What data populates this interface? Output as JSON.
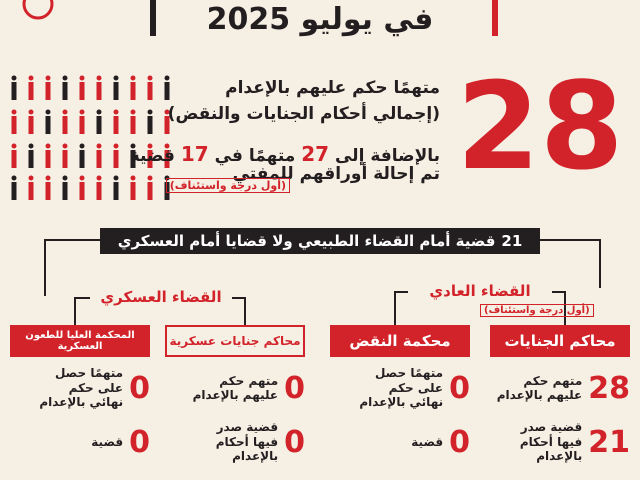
{
  "header": {
    "title": "في يوليو 2025"
  },
  "summary": {
    "big_number": 28,
    "line1": "متهمًا حكم عليهم بالإعدام",
    "line2": "(إجمالي أحكام الجنايات والنقض)",
    "line3": [
      "بالإضافة إلى",
      27,
      "متهمًا في",
      17,
      "قضية"
    ],
    "line4": "تم إحالة أوراقهم للمفتي",
    "note": "(أول درجة واستئناف)"
  },
  "banner": {
    "number": 21,
    "text": "قضية أمام القضاء الطبيعي ولا قضايا أمام العسكري"
  },
  "branches": {
    "military": "القضاء العسكري",
    "civil": "القضاء العادي",
    "civil_note": "(أول درجة واستئناف)"
  },
  "columns": [
    {
      "title": "محاكم الجنايات",
      "stats": [
        {
          "number": 28,
          "label": "متهم حكم عليهم بالإعدام"
        },
        {
          "number": 21,
          "label": "قضية صدر فيها أحكام بالإعدام"
        }
      ]
    },
    {
      "title": "محكمة النقض",
      "stats": [
        {
          "number": 0,
          "label": "متهمًا حصل على حكم نهائي بالإعدام"
        },
        {
          "number": 0,
          "label": "قضية"
        }
      ]
    },
    {
      "title": "محاكم جنايات عسكرية",
      "stats": [
        {
          "number": 0,
          "label": "متهم حكم عليهم بالإعدام"
        },
        {
          "number": 0,
          "label": "قضية صدر فيها أحكام بالإعدام"
        }
      ]
    },
    {
      "title": "المحكمة العليا للطعون العسكرية",
      "stats": [
        {
          "number": 0,
          "label": "متهمًا حصل على حكم نهائي بالإعدام"
        },
        {
          "number": 0,
          "label": "قضية"
        }
      ]
    }
  ]
}
